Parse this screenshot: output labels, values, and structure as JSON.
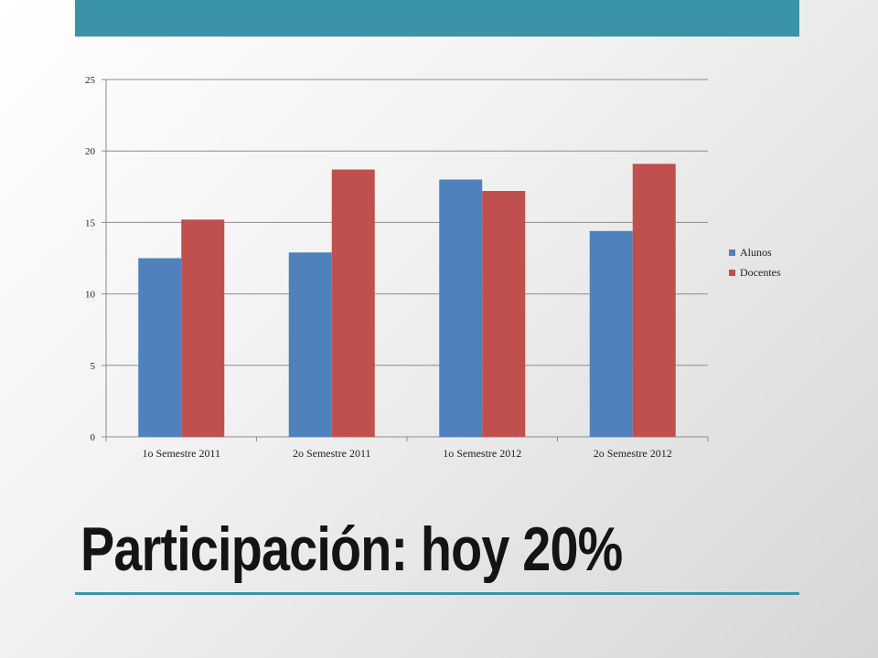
{
  "slide": {
    "title": "Participación: hoy 20%",
    "accent_color": "#3b93a8"
  },
  "chart_data": {
    "type": "bar",
    "categories": [
      "1o Semestre 2011",
      "2o Semestre 2011",
      "1o Semestre 2012",
      "2o Semestre 2012"
    ],
    "series": [
      {
        "name": "Alunos",
        "color": "#4f81bd",
        "values": [
          12.5,
          12.9,
          18.0,
          14.4
        ]
      },
      {
        "name": "Docentes",
        "color": "#c0504d",
        "values": [
          15.2,
          18.7,
          17.2,
          19.1
        ]
      }
    ],
    "ylim": [
      0,
      25
    ],
    "yticks": [
      0,
      5,
      10,
      15,
      20,
      25
    ],
    "grid": true,
    "legend": "right"
  }
}
